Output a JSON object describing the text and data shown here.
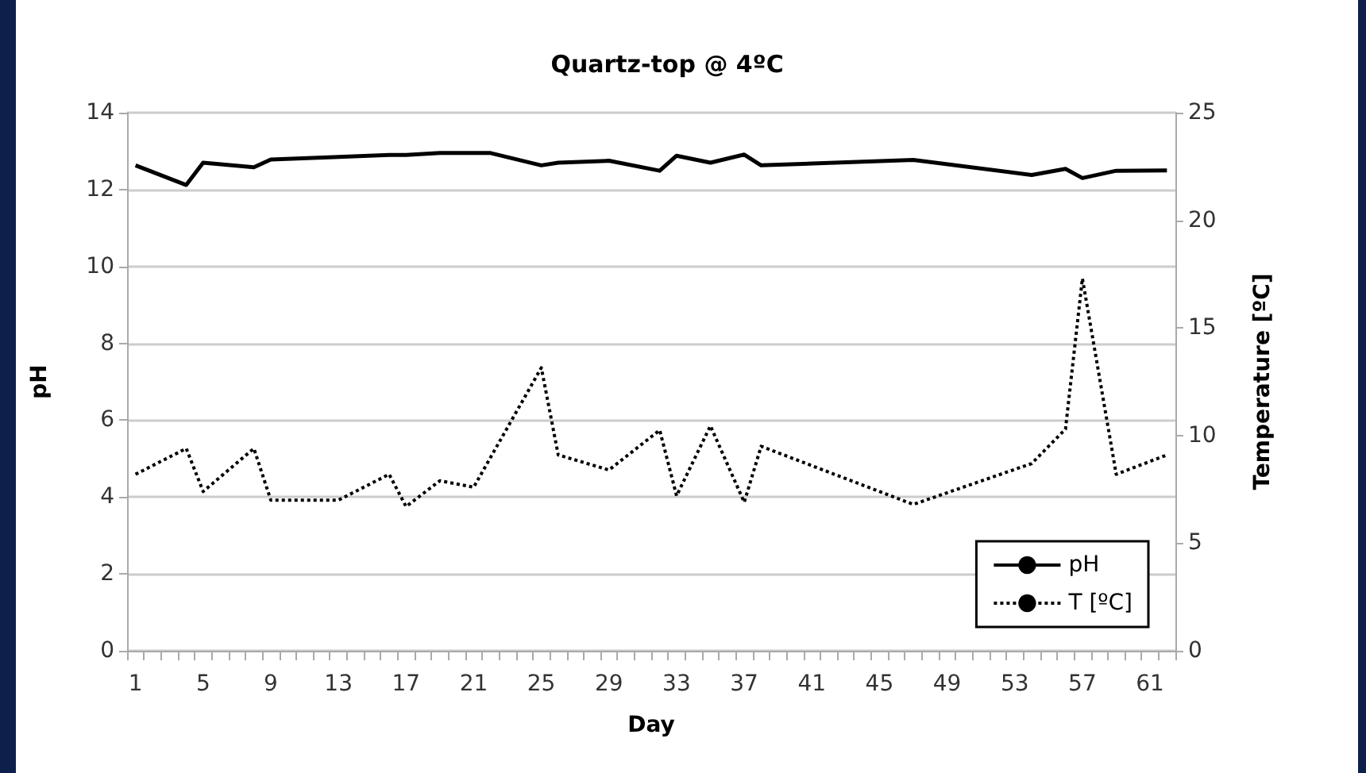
{
  "chart_data": {
    "type": "line",
    "title": "Quartz-top @ 4ºC",
    "xlabel": "Day",
    "ylabel": "pH",
    "y2label": "Temperature [ºC]",
    "categories": [
      "1",
      null,
      null,
      null,
      "5",
      null,
      null,
      null,
      "9",
      null,
      null,
      null,
      "13",
      null,
      null,
      null,
      "17",
      null,
      null,
      null,
      "21",
      null,
      null,
      null,
      "25",
      null,
      null,
      null,
      "29",
      null,
      null,
      null,
      "33",
      null,
      null,
      null,
      "37",
      null,
      null,
      null,
      "41",
      null,
      null,
      null,
      "45",
      null,
      null,
      null,
      "49",
      null,
      null,
      null,
      "53",
      null,
      null,
      null,
      "57",
      null,
      null,
      null,
      "61",
      null
    ],
    "series": [
      {
        "name": "pH",
        "color": "#000000",
        "line_style": "solid",
        "values": [
          12.63,
          null,
          null,
          12.12,
          12.7,
          null,
          null,
          12.58,
          12.78,
          null,
          null,
          null,
          12.85,
          null,
          null,
          12.9,
          12.9,
          null,
          12.95,
          null,
          12.95,
          12.95,
          null,
          null,
          12.63,
          12.7,
          null,
          null,
          12.75,
          null,
          null,
          12.49,
          12.88,
          null,
          12.7,
          null,
          12.91,
          12.63,
          null,
          null,
          null,
          null,
          null,
          null,
          null,
          null,
          12.77,
          null,
          null,
          null,
          null,
          null,
          null,
          12.38,
          null,
          12.54,
          12.3,
          null,
          12.49,
          null,
          null,
          12.5
        ]
      },
      {
        "name": "T [ºC]",
        "color": "#000000",
        "line_style": "dotted",
        "axis": "y2",
        "values": [
          8.2,
          null,
          null,
          9.4,
          7.4,
          null,
          null,
          9.4,
          7.0,
          null,
          null,
          null,
          7.0,
          null,
          null,
          8.2,
          6.7,
          null,
          7.9,
          null,
          7.6,
          null,
          null,
          null,
          13.15,
          9.1,
          null,
          null,
          8.4,
          null,
          null,
          10.25,
          7.2,
          null,
          10.45,
          null,
          6.9,
          9.5,
          null,
          null,
          null,
          null,
          null,
          null,
          null,
          null,
          6.8,
          null,
          null,
          null,
          null,
          null,
          null,
          8.7,
          null,
          10.3,
          17.3,
          null,
          8.2,
          null,
          null,
          9.1
        ]
      }
    ],
    "ylim": [
      0,
      14
    ],
    "yticks": [
      0,
      2,
      4,
      6,
      8,
      10,
      12,
      14
    ],
    "y2lim": [
      0,
      25
    ],
    "y2ticks": [
      0,
      5,
      10,
      15,
      20,
      25
    ],
    "grid": "y",
    "legend": "bottom right",
    "marker": "none"
  }
}
